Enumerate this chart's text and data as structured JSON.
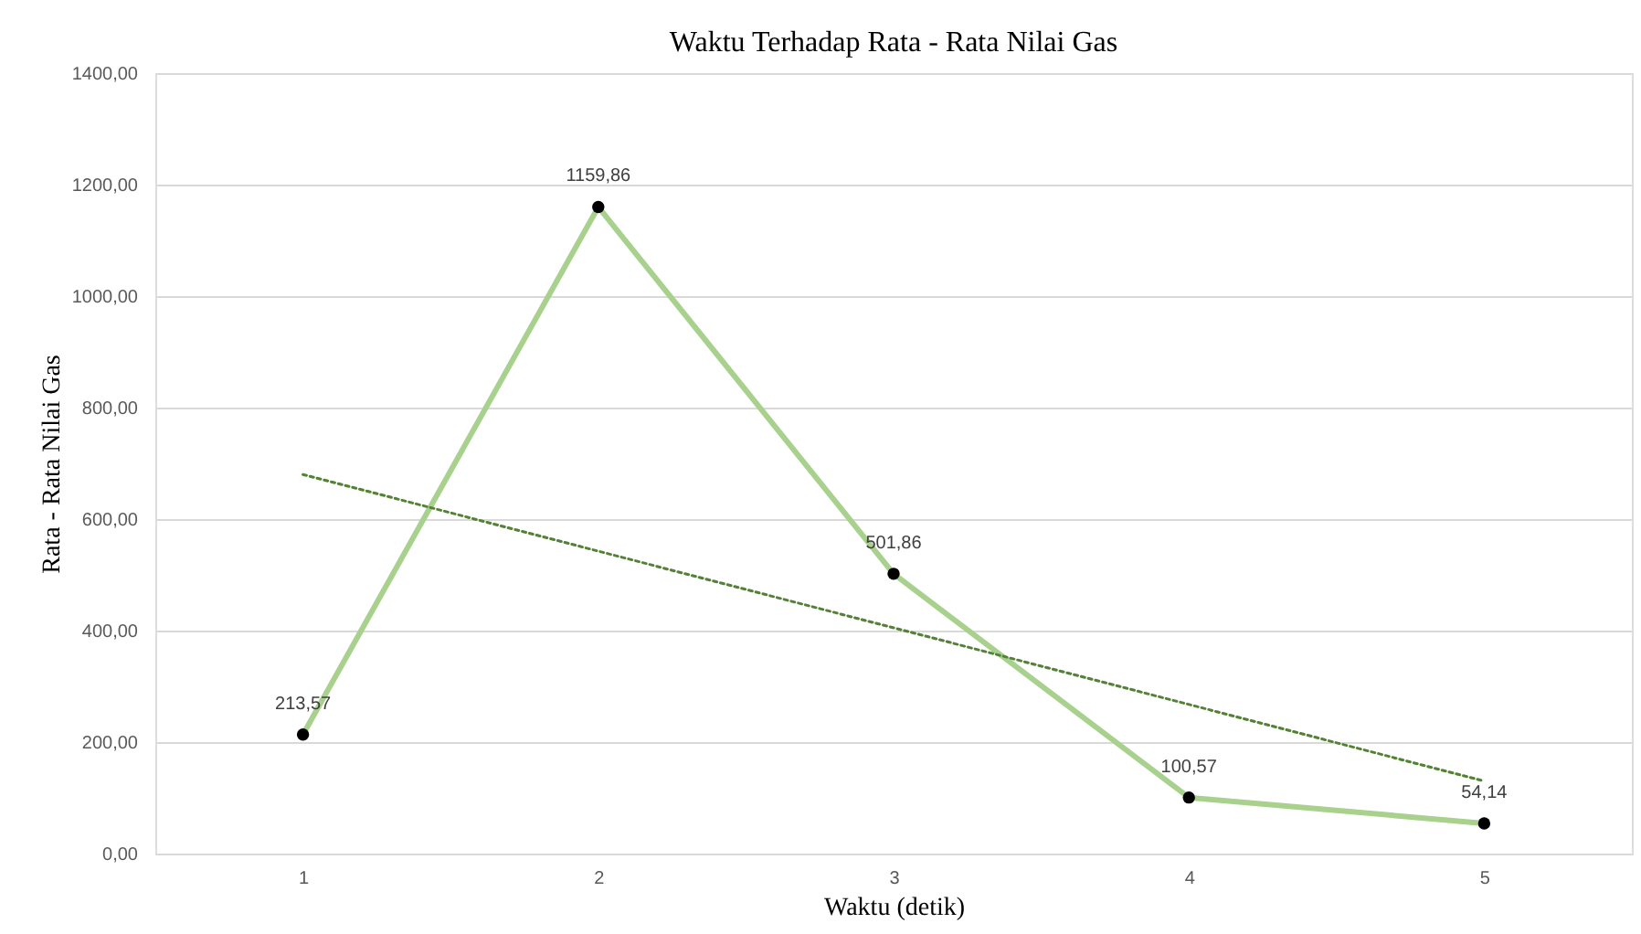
{
  "chart_data": {
    "type": "line",
    "title": "Waktu Terhadap Rata - Rata Nilai Gas",
    "xlabel": "Waktu (detik)",
    "ylabel": "Rata - Rata Nilai Gas",
    "categories": [
      "1",
      "2",
      "3",
      "4",
      "5"
    ],
    "series": [
      {
        "color": "#a9d18e",
        "values": [
          213.57,
          1159.86,
          501.86,
          100.57,
          54.14
        ],
        "marker": "circle",
        "line_style": "solid",
        "value_labels": [
          "213,57",
          "1159,86",
          "501,86",
          "100,57",
          "54,14"
        ]
      },
      {
        "type": "line",
        "x": [
          "1",
          "5"
        ],
        "values": [
          680,
          130
        ],
        "color": "#548235",
        "line_style": "dotted",
        "marker": "none"
      }
    ],
    "ylim": [
      0,
      1400
    ],
    "yticks": [
      {
        "value": 0,
        "label": "0,00"
      },
      {
        "value": 200,
        "label": "200,00"
      },
      {
        "value": 400,
        "label": "400,00"
      },
      {
        "value": 600,
        "label": "600,00"
      },
      {
        "value": 800,
        "label": "800,00"
      },
      {
        "value": 1000,
        "label": "1000,00"
      },
      {
        "value": 1200,
        "label": "1200,00"
      },
      {
        "value": 1400,
        "label": "1400,00"
      }
    ],
    "grid": "y"
  }
}
